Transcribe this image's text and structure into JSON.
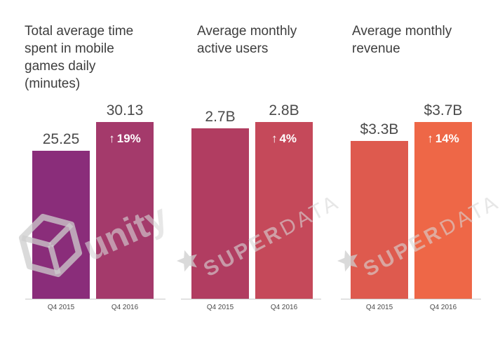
{
  "chart_data": [
    {
      "type": "bar",
      "title": "Total average time\nspent in mobile\ngames daily\n(minutes)",
      "categories": [
        "Q4 2015",
        "Q4 2016"
      ],
      "values": [
        25.25,
        30.13
      ],
      "value_labels": [
        "25.25",
        "30.13"
      ],
      "change_label": "19%",
      "colors": [
        "#8a2d7a",
        "#a43a6b"
      ]
    },
    {
      "type": "bar",
      "title": "Average monthly\nactive users",
      "categories": [
        "Q4 2015",
        "Q4 2016"
      ],
      "values": [
        2.7,
        2.8
      ],
      "value_labels": [
        "2.7B",
        "2.8B"
      ],
      "change_label": "4%",
      "colors": [
        "#b13d61",
        "#c5495a"
      ]
    },
    {
      "type": "bar",
      "title": "Average monthly\nrevenue",
      "categories": [
        "Q4 2015",
        "Q4 2016"
      ],
      "values": [
        3.3,
        3.7
      ],
      "value_labels": [
        "$3.3B",
        "$3.7B"
      ],
      "change_label": "14%",
      "colors": [
        "#de5a4e",
        "#ee6747"
      ]
    }
  ],
  "watermarks": {
    "unity": "unity",
    "superdata_bold": "SUPER",
    "superdata_light": "DATA"
  }
}
